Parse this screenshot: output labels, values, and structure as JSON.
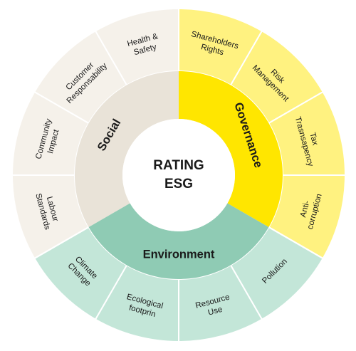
{
  "center": {
    "line1": "RATING",
    "line2": "ESG"
  },
  "pillars": [
    {
      "name": "Social",
      "color": "#e9e3d8",
      "outer_color": "#f5f1ea",
      "items": [
        {
          "lines": [
            "Labour",
            "Standards"
          ]
        },
        {
          "lines": [
            "Community",
            "Impact"
          ]
        },
        {
          "lines": [
            "Customer",
            "Responsability"
          ]
        },
        {
          "lines": [
            "Health &",
            "Safety"
          ]
        }
      ]
    },
    {
      "name": "Governance",
      "color": "#ffe600",
      "outer_color": "#fff280",
      "items": [
        {
          "lines": [
            "Shareholders",
            "Rights"
          ]
        },
        {
          "lines": [
            "Risk",
            "Management"
          ]
        },
        {
          "lines": [
            "Tax",
            "Trasnsapency"
          ]
        },
        {
          "lines": [
            "Anti-",
            "corruption"
          ]
        }
      ]
    },
    {
      "name": "Environment",
      "color": "#8fcbb4",
      "outer_color": "#c3e6d8",
      "items": [
        {
          "lines": [
            "Pollution"
          ]
        },
        {
          "lines": [
            "Resource",
            "Use"
          ]
        },
        {
          "lines": [
            "Ecological",
            "footprin"
          ]
        },
        {
          "lines": [
            "Climate",
            "Change"
          ]
        }
      ]
    }
  ]
}
